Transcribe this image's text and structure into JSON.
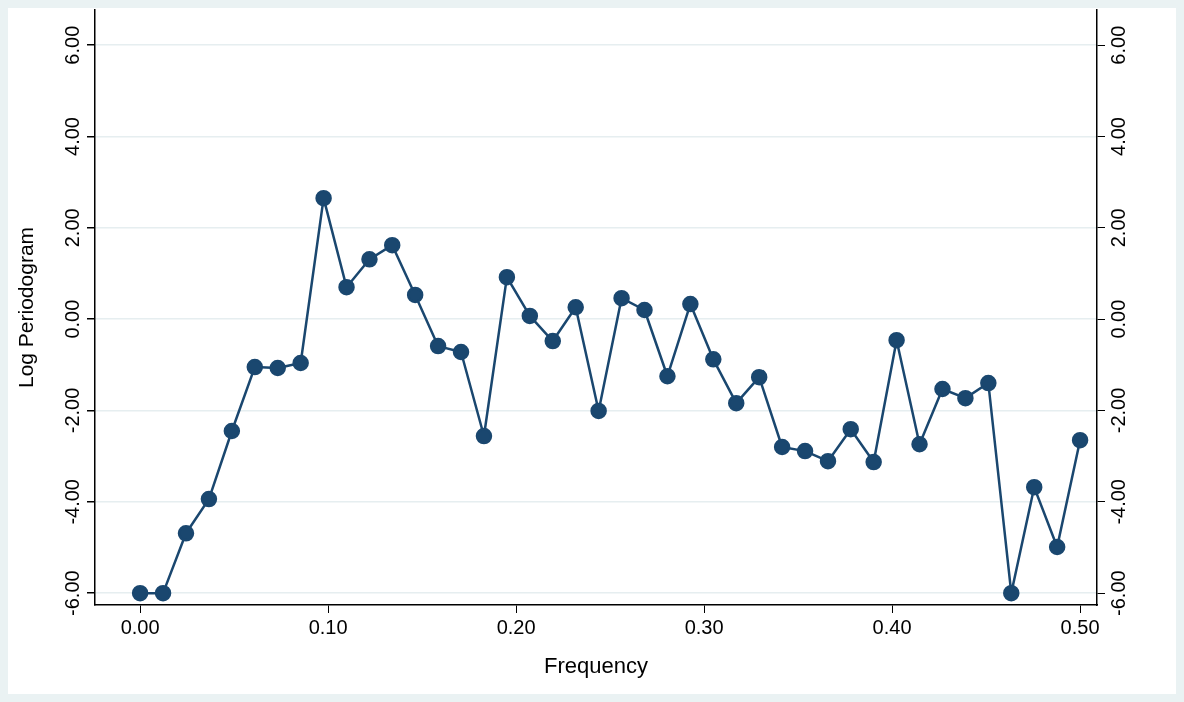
{
  "chart_data": {
    "type": "line",
    "xlabel": "Frequency",
    "ylabel": "Log Periodogram",
    "x": [
      0,
      0.0122,
      0.0244,
      0.0366,
      0.0488,
      0.061,
      0.0732,
      0.0854,
      0.0976,
      0.1098,
      0.122,
      0.1341,
      0.1463,
      0.1585,
      0.1707,
      0.1829,
      0.1951,
      0.2073,
      0.2195,
      0.2317,
      0.2439,
      0.2561,
      0.2683,
      0.2805,
      0.2927,
      0.3049,
      0.3171,
      0.3293,
      0.3415,
      0.3537,
      0.3659,
      0.378,
      0.3902,
      0.4024,
      0.4146,
      0.4268,
      0.439,
      0.4512,
      0.4634,
      0.4756,
      0.4878,
      0.5
    ],
    "series": [
      {
        "color": "#1a476f",
        "values": [
          -6.0,
          -6.0,
          -4.69,
          -3.94,
          -2.45,
          -1.05,
          -1.07,
          -0.96,
          2.65,
          0.7,
          1.31,
          1.62,
          0.53,
          -0.59,
          -0.72,
          -2.56,
          0.92,
          0.07,
          -0.48,
          0.26,
          -2.01,
          0.46,
          0.2,
          -1.25,
          0.33,
          -0.88,
          -1.84,
          -1.27,
          -2.8,
          -2.89,
          -3.11,
          -2.41,
          -3.13,
          -0.46,
          -2.74,
          -1.53,
          -1.73,
          -1.4,
          -6.0,
          -3.68,
          -4.99,
          -2.65
        ]
      }
    ],
    "xlim": [
      -0.024,
      0.509
    ],
    "xticks": [
      {
        "value": 0,
        "label": "0.00"
      },
      {
        "value": 0.1,
        "label": "0.10"
      },
      {
        "value": 0.2,
        "label": "0.20"
      },
      {
        "value": 0.3,
        "label": "0.30"
      },
      {
        "value": 0.4,
        "label": "0.40"
      },
      {
        "value": 0.5,
        "label": "0.50"
      }
    ],
    "ylim": [
      -6.26,
      6.77
    ],
    "yticks": [
      {
        "value": -6,
        "label": "-6.00"
      },
      {
        "value": -4,
        "label": "-4.00"
      },
      {
        "value": -2,
        "label": "-2.00"
      },
      {
        "value": 0,
        "label": "0.00"
      },
      {
        "value": 2,
        "label": "2.00"
      },
      {
        "value": 4,
        "label": "4.00"
      },
      {
        "value": 6,
        "label": "6.00"
      }
    ],
    "y2lim": [
      -6.26,
      6.77
    ],
    "y2ticks": [
      {
        "value": -6,
        "label": "-6.00"
      },
      {
        "value": -4,
        "label": "-4.00"
      },
      {
        "value": -2,
        "label": "-2.00"
      },
      {
        "value": 0,
        "label": "0.00"
      },
      {
        "value": 2,
        "label": "2.00"
      },
      {
        "value": 4,
        "label": "4.00"
      },
      {
        "value": 6,
        "label": "6.00"
      }
    ],
    "grid": "y",
    "marker": "circle",
    "line_style": "solid",
    "legend": false
  }
}
